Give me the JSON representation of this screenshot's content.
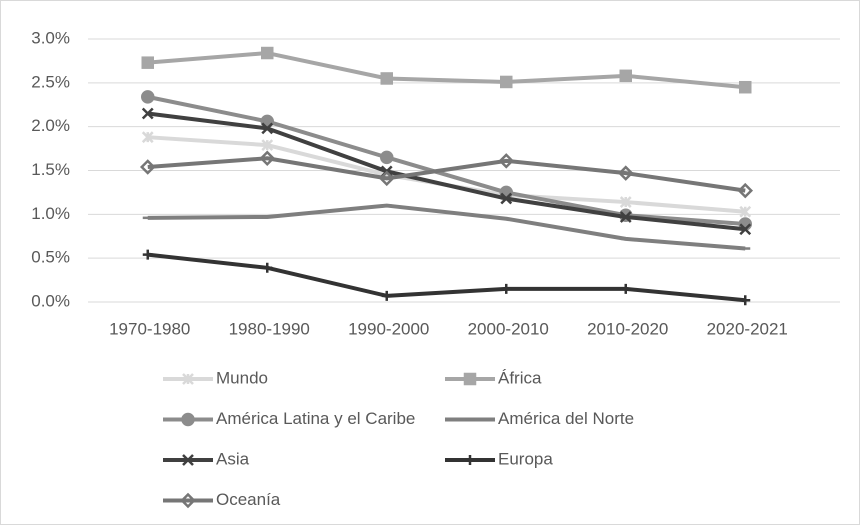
{
  "chart_data": {
    "type": "line",
    "categories": [
      "1970-1980",
      "1980-1990",
      "1990-2000",
      "2000-2010",
      "2010-2020",
      "2020-2021"
    ],
    "ylim": [
      0,
      3
    ],
    "yticks": [
      {
        "value": 0,
        "label": "0.0%"
      },
      {
        "value": 0.5,
        "label": "0.5%"
      },
      {
        "value": 1,
        "label": "1.0%"
      },
      {
        "value": 1.5,
        "label": "1.5%"
      },
      {
        "value": 2,
        "label": "2.0%"
      },
      {
        "value": 2.5,
        "label": "2.5%"
      },
      {
        "value": 3,
        "label": "3.0%"
      }
    ],
    "grid": true,
    "legend": "bottom",
    "series": [
      {
        "name": "Mundo",
        "color": "#d9d9d9",
        "marker": "asterisk",
        "values": [
          1.88,
          1.79,
          1.45,
          1.22,
          1.14,
          1.03
        ]
      },
      {
        "name": "África",
        "color": "#a6a6a6",
        "marker": "square",
        "values": [
          2.73,
          2.84,
          2.55,
          2.51,
          2.58,
          2.45
        ]
      },
      {
        "name": "América Latina y el Caribe",
        "color": "#8c8c8c",
        "marker": "circle",
        "values": [
          2.34,
          2.06,
          1.65,
          1.25,
          0.99,
          0.89
        ]
      },
      {
        "name": "América del Norte",
        "color": "#7f7f7f",
        "marker": "dash",
        "values": [
          0.96,
          0.97,
          1.1,
          0.95,
          0.72,
          0.61
        ]
      },
      {
        "name": "Asia",
        "color": "#404040",
        "marker": "x",
        "values": [
          2.15,
          1.98,
          1.49,
          1.18,
          0.97,
          0.83
        ]
      },
      {
        "name": "Europa",
        "color": "#333333",
        "marker": "plus",
        "values": [
          0.54,
          0.39,
          0.07,
          0.15,
          0.15,
          0.02
        ]
      },
      {
        "name": "Oceanía",
        "color": "#767676",
        "marker": "diamond",
        "values": [
          1.54,
          1.64,
          1.41,
          1.61,
          1.47,
          1.27
        ]
      }
    ]
  }
}
